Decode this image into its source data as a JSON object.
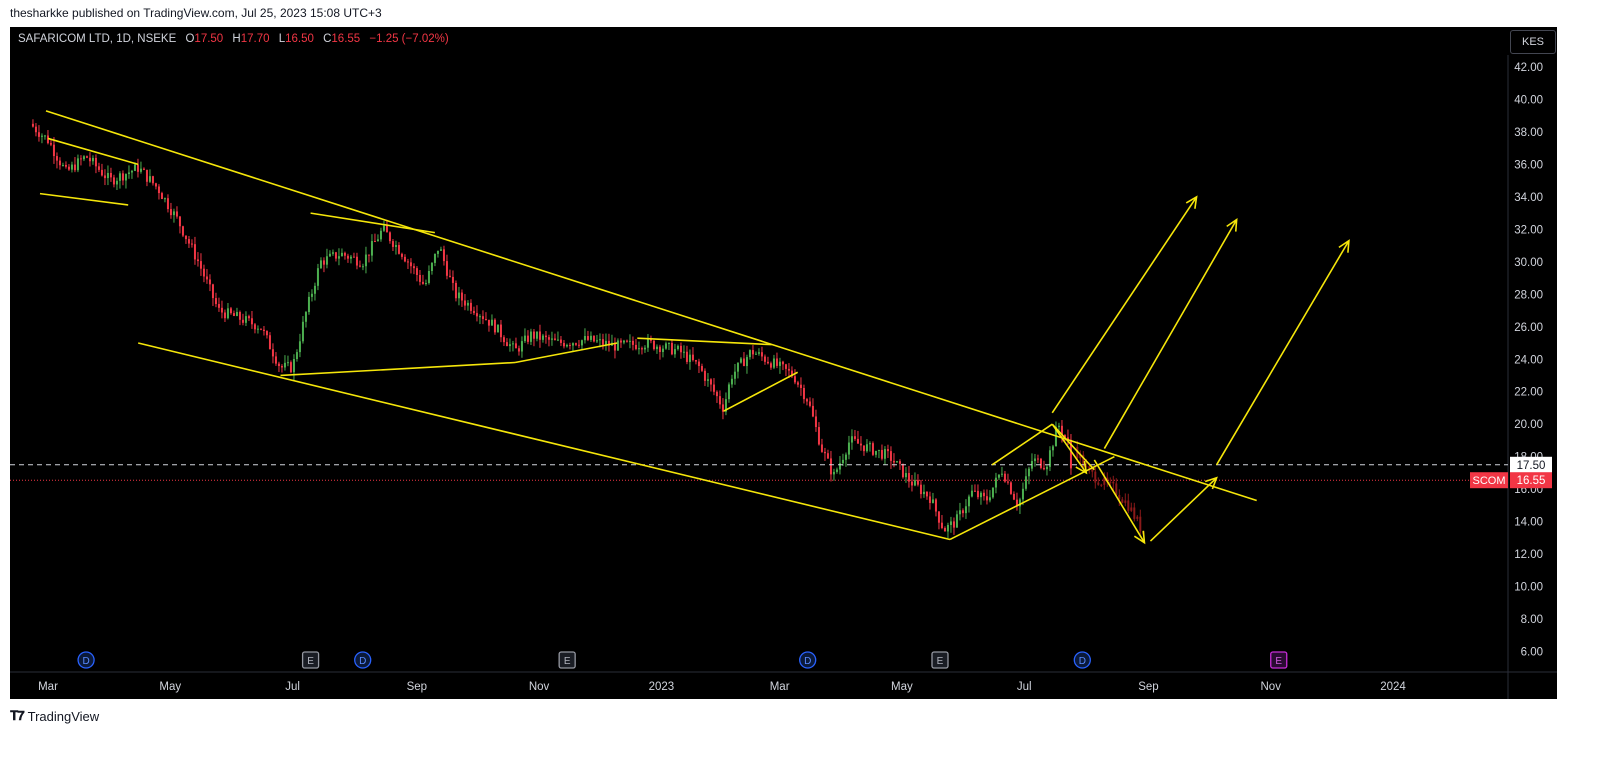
{
  "header": {
    "caption": "thesharkke published on TradingView.com, Jul 25, 2023 15:08 UTC+3"
  },
  "legend": {
    "symbol": "SAFARICOM LTD, 1D, NSEKE",
    "open_label": "O",
    "open": "17.50",
    "high_label": "H",
    "high": "17.70",
    "low_label": "L",
    "low": "16.50",
    "close_label": "C",
    "close": "16.55",
    "change": "−1.25 (−7.02%)"
  },
  "currency_button": "KES",
  "footer": {
    "brand": "TradingView"
  },
  "colors": {
    "up": "#4caf50",
    "down": "#f23645",
    "projection": "#8b1a1a",
    "drawing": "#f5e60a",
    "background": "#000000",
    "price_tag": "#f23645"
  },
  "chart_data": {
    "type": "candlestick",
    "x_ticks": [
      "Mar",
      "May",
      "Jul",
      "Sep",
      "Nov",
      "2023",
      "Mar",
      "May",
      "Jul",
      "Sep",
      "Nov",
      "2024"
    ],
    "y_ticks": [
      "42.00",
      "40.00",
      "38.00",
      "36.00",
      "34.00",
      "32.00",
      "30.00",
      "28.00",
      "26.00",
      "24.00",
      "22.00",
      "20.00",
      "18.00",
      "16.00",
      "14.00",
      "12.00",
      "10.00",
      "8.00",
      "6.00"
    ],
    "y_range": [
      5,
      42.5
    ],
    "reference_line": {
      "value": 17.5,
      "label": "17.50",
      "style": "dashed"
    },
    "last_price": {
      "value": 16.55,
      "label": "16.55",
      "symbol_tag": "SCOM"
    },
    "price_path": [
      [
        "2022-02-20",
        38.5
      ],
      [
        "2022-03-01",
        37.5
      ],
      [
        "2022-03-10",
        35.5
      ],
      [
        "2022-03-20",
        36.5
      ],
      [
        "2022-04-01",
        35.0
      ],
      [
        "2022-04-15",
        35.8
      ],
      [
        "2022-04-25",
        34.5
      ],
      [
        "2022-05-05",
        32.5
      ],
      [
        "2022-05-15",
        30.0
      ],
      [
        "2022-05-25",
        27.0
      ],
      [
        "2022-06-05",
        26.5
      ],
      [
        "2022-06-15",
        26.0
      ],
      [
        "2022-06-25",
        23.5
      ],
      [
        "2022-07-01",
        23.5
      ],
      [
        "2022-07-08",
        27.0
      ],
      [
        "2022-07-15",
        30.0
      ],
      [
        "2022-07-25",
        30.5
      ],
      [
        "2022-08-05",
        30.0
      ],
      [
        "2022-08-15",
        32.0
      ],
      [
        "2022-08-25",
        30.5
      ],
      [
        "2022-09-05",
        28.5
      ],
      [
        "2022-09-12",
        31.0
      ],
      [
        "2022-09-20",
        28.0
      ],
      [
        "2022-10-01",
        27.0
      ],
      [
        "2022-10-10",
        26.0
      ],
      [
        "2022-10-20",
        24.5
      ],
      [
        "2022-10-28",
        25.5
      ],
      [
        "2022-11-10",
        25.0
      ],
      [
        "2022-11-25",
        25.2
      ],
      [
        "2022-12-10",
        24.8
      ],
      [
        "2022-12-25",
        25.0
      ],
      [
        "2023-01-10",
        24.5
      ],
      [
        "2023-01-20",
        23.5
      ],
      [
        "2023-02-01",
        21.0
      ],
      [
        "2023-02-05",
        23.0
      ],
      [
        "2023-02-15",
        24.5
      ],
      [
        "2023-02-25",
        23.8
      ],
      [
        "2023-03-08",
        23.0
      ],
      [
        "2023-03-15",
        21.5
      ],
      [
        "2023-03-22",
        18.5
      ],
      [
        "2023-03-28",
        16.8
      ],
      [
        "2023-04-05",
        19.0
      ],
      [
        "2023-04-15",
        18.5
      ],
      [
        "2023-04-25",
        18.0
      ],
      [
        "2023-05-05",
        16.5
      ],
      [
        "2023-05-15",
        15.5
      ],
      [
        "2023-05-22",
        13.5
      ],
      [
        "2023-05-28",
        14.0
      ],
      [
        "2023-06-05",
        15.8
      ],
      [
        "2023-06-12",
        15.3
      ],
      [
        "2023-06-20",
        17.2
      ],
      [
        "2023-06-28",
        15.0
      ],
      [
        "2023-07-05",
        17.8
      ],
      [
        "2023-07-12",
        17.5
      ],
      [
        "2023-07-18",
        20.0
      ],
      [
        "2023-07-23",
        18.8
      ],
      [
        "2023-07-25",
        16.55
      ]
    ],
    "projection_path": [
      [
        "2023-07-26",
        18.6
      ],
      [
        "2023-08-01",
        17.2
      ],
      [
        "2023-08-08",
        16.5
      ],
      [
        "2023-08-15",
        16.0
      ],
      [
        "2023-08-22",
        15.0
      ],
      [
        "2023-08-30",
        13.2
      ]
    ],
    "earnings_markers": [
      {
        "date": "2022-07-10",
        "label": "E"
      },
      {
        "date": "2022-11-15",
        "label": "E"
      },
      {
        "date": "2023-05-20",
        "label": "E"
      },
      {
        "date": "2023-11-05",
        "label": "E"
      }
    ],
    "dividend_markers": [
      {
        "date": "2022-03-20",
        "label": "D"
      },
      {
        "date": "2022-08-05",
        "label": "D"
      },
      {
        "date": "2023-03-15",
        "label": "D"
      },
      {
        "date": "2023-07-30",
        "label": "D"
      }
    ],
    "trendlines": [
      {
        "from": [
          "2022-02-28",
          39.3
        ],
        "to": [
          "2023-10-25",
          15.3
        ]
      },
      {
        "from": [
          "2022-04-15",
          25.0
        ],
        "to": [
          "2023-05-25",
          12.9
        ]
      },
      {
        "from": [
          "2022-03-01",
          37.6
        ],
        "to": [
          "2022-04-15",
          36.0
        ]
      },
      {
        "from": [
          "2022-02-25",
          34.2
        ],
        "to": [
          "2022-04-10",
          33.5
        ]
      },
      {
        "from": [
          "2022-07-10",
          33.0
        ],
        "to": [
          "2022-09-10",
          31.8
        ]
      },
      {
        "from": [
          "2022-06-25",
          23.0
        ],
        "to": [
          "2022-10-20",
          23.8
        ]
      },
      {
        "from": [
          "2022-10-20",
          23.8
        ],
        "to": [
          "2022-12-10",
          25.0
        ]
      },
      {
        "from": [
          "2022-12-20",
          25.3
        ],
        "to": [
          "2023-02-25",
          24.9
        ]
      },
      {
        "from": [
          "2023-02-01",
          20.8
        ],
        "to": [
          "2023-03-10",
          23.2
        ]
      },
      {
        "from": [
          "2023-05-25",
          12.9
        ],
        "to": [
          "2023-08-15",
          18.0
        ]
      },
      {
        "from": [
          "2023-06-15",
          17.5
        ],
        "to": [
          "2023-07-15",
          20.0
        ]
      },
      {
        "from": [
          "2023-07-15",
          20.0
        ],
        "to": [
          "2023-08-05",
          17.2
        ]
      }
    ],
    "arrows": [
      {
        "from": [
          "2023-07-15",
          20.0
        ],
        "to": [
          "2023-08-01",
          17.0
        ]
      },
      {
        "from": [
          "2023-08-05",
          17.8
        ],
        "to": [
          "2023-08-30",
          12.7
        ]
      },
      {
        "from": [
          "2023-09-02",
          12.8
        ],
        "to": [
          "2023-10-05",
          16.7
        ]
      },
      {
        "from": [
          "2023-07-15",
          20.7
        ],
        "to": [
          "2023-09-25",
          34.0
        ]
      },
      {
        "from": [
          "2023-08-10",
          18.5
        ],
        "to": [
          "2023-10-15",
          32.6
        ]
      },
      {
        "from": [
          "2023-10-05",
          17.5
        ],
        "to": [
          "2023-12-10",
          31.3
        ]
      }
    ]
  }
}
